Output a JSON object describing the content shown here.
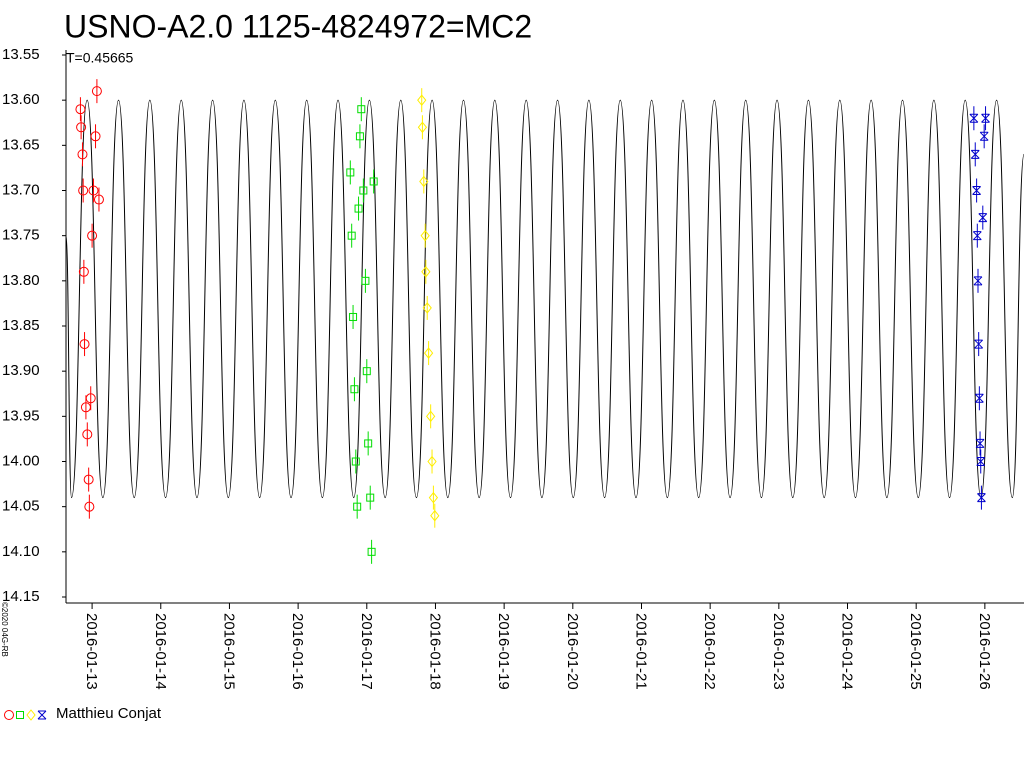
{
  "chart_data": {
    "type": "lightcurve",
    "title": "USNO-A2.0 1125-4824972=MC2",
    "subtitle": "T=0.45665",
    "credit": "©2020 04G-RB",
    "legend_label": "Matthieu Conjat",
    "xlim": [
      12.62,
      26.57
    ],
    "ylim": [
      13.55,
      14.15
    ],
    "y_inverted": true,
    "yticks": [
      {
        "value": 13.55,
        "label": "13.55"
      },
      {
        "value": 13.6,
        "label": "13.60"
      },
      {
        "value": 13.65,
        "label": "13.65"
      },
      {
        "value": 13.7,
        "label": "13.70"
      },
      {
        "value": 13.75,
        "label": "13.75"
      },
      {
        "value": 13.8,
        "label": "13.80"
      },
      {
        "value": 13.85,
        "label": "13.85"
      },
      {
        "value": 13.9,
        "label": "13.90"
      },
      {
        "value": 13.95,
        "label": "13.95"
      },
      {
        "value": 14.0,
        "label": "14.00"
      },
      {
        "value": 14.05,
        "label": "14.05"
      },
      {
        "value": 14.1,
        "label": "14.10"
      },
      {
        "value": 14.15,
        "label": "14.15"
      }
    ],
    "xticks": [
      {
        "value": 13,
        "label": "2016-01-13"
      },
      {
        "value": 14,
        "label": "2016-01-14"
      },
      {
        "value": 15,
        "label": "2016-01-15"
      },
      {
        "value": 16,
        "label": "2016-01-16"
      },
      {
        "value": 17,
        "label": "2016-01-17"
      },
      {
        "value": 18,
        "label": "2016-01-18"
      },
      {
        "value": 19,
        "label": "2016-01-19"
      },
      {
        "value": 20,
        "label": "2016-01-20"
      },
      {
        "value": 21,
        "label": "2016-01-21"
      },
      {
        "value": 22,
        "label": "2016-01-22"
      },
      {
        "value": 23,
        "label": "2016-01-23"
      },
      {
        "value": 24,
        "label": "2016-01-24"
      },
      {
        "value": 25,
        "label": "2016-01-25"
      },
      {
        "value": 26,
        "label": "2016-01-26"
      }
    ],
    "model": {
      "color": "#000000",
      "x": [
        12.62,
        12.7,
        12.928,
        13.157,
        13.385,
        13.613,
        13.841,
        14.07,
        14.298,
        14.527,
        14.755,
        14.983,
        15.211,
        15.44,
        15.668,
        15.897,
        16.125,
        16.353,
        16.581,
        16.81,
        17.038,
        17.267,
        17.495,
        17.723,
        17.951,
        18.18,
        18.408,
        18.636,
        18.864,
        19.093,
        19.321,
        19.55,
        19.778,
        20.006,
        20.234,
        20.463,
        20.691,
        20.92,
        21.148,
        21.376,
        21.604,
        21.833,
        22.061,
        22.29,
        22.518,
        22.746,
        22.974,
        23.203,
        23.431,
        23.66,
        23.888,
        24.116,
        24.344,
        24.573,
        24.801,
        25.03,
        25.258,
        25.486,
        25.714,
        25.943,
        26.171,
        26.4,
        26.57
      ],
      "values": [
        13.75,
        14.04,
        13.6,
        14.04,
        13.6,
        14.04,
        13.6,
        14.04,
        13.6,
        14.04,
        13.6,
        14.04,
        13.6,
        14.04,
        13.6,
        14.04,
        13.6,
        14.04,
        13.6,
        14.04,
        13.6,
        14.04,
        13.6,
        14.04,
        13.6,
        14.04,
        13.6,
        14.04,
        13.6,
        14.04,
        13.6,
        14.04,
        13.6,
        14.04,
        13.6,
        14.04,
        13.6,
        14.04,
        13.6,
        14.04,
        13.6,
        14.04,
        13.6,
        14.04,
        13.6,
        14.04,
        13.6,
        14.04,
        13.6,
        14.04,
        13.6,
        14.04,
        13.6,
        14.04,
        13.6,
        14.04,
        13.6,
        14.04,
        13.6,
        14.04,
        13.6,
        14.04,
        13.66
      ]
    },
    "series": [
      {
        "color": "#ff0000",
        "marker": "circle",
        "x": [
          12.83,
          12.84,
          12.86,
          12.87,
          12.88,
          12.89,
          12.91,
          12.93,
          12.95,
          12.96,
          12.98,
          13.0,
          13.02,
          13.05,
          13.07,
          13.1
        ],
        "values": [
          13.61,
          13.63,
          13.66,
          13.7,
          13.79,
          13.87,
          13.94,
          13.97,
          14.02,
          14.05,
          13.93,
          13.75,
          13.7,
          13.64,
          13.59,
          13.71
        ]
      },
      {
        "color": "#00dd00",
        "marker": "square",
        "x": [
          16.76,
          16.78,
          16.8,
          16.82,
          16.84,
          16.86,
          16.88,
          16.9,
          16.92,
          16.95,
          16.98,
          17.0,
          17.02,
          17.05,
          17.07,
          17.1
        ],
        "values": [
          13.68,
          13.75,
          13.84,
          13.92,
          14.0,
          14.05,
          13.72,
          13.64,
          13.61,
          13.7,
          13.8,
          13.9,
          13.98,
          14.04,
          14.1,
          13.69
        ]
      },
      {
        "color": "#ffee00",
        "marker": "diamond",
        "x": [
          17.8,
          17.81,
          17.83,
          17.85,
          17.86,
          17.88,
          17.9,
          17.93,
          17.95,
          17.97,
          17.99
        ],
        "values": [
          13.6,
          13.63,
          13.69,
          13.75,
          13.79,
          13.83,
          13.88,
          13.95,
          14.0,
          14.04,
          14.06
        ]
      },
      {
        "color": "#0000cc",
        "marker": "star",
        "x": [
          25.84,
          25.86,
          25.88,
          25.89,
          25.9,
          25.91,
          25.92,
          25.93,
          25.94,
          25.95,
          25.97,
          25.99,
          26.01
        ],
        "values": [
          13.62,
          13.66,
          13.7,
          13.75,
          13.8,
          13.87,
          13.93,
          13.98,
          14.0,
          14.04,
          13.73,
          13.64,
          13.62
        ]
      }
    ]
  }
}
